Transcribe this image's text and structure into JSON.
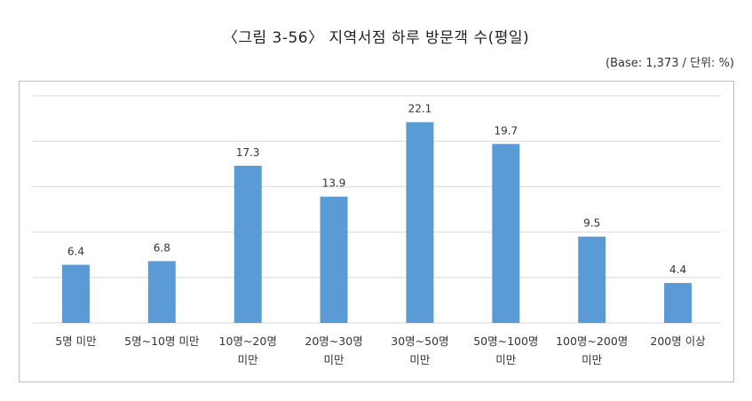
{
  "title": "〈그림 3-56〉 지역서점 하루 방문객 수(평일)",
  "base_note": "(Base: 1,373 / 단위: %)",
  "chart_data": {
    "type": "bar",
    "categories": [
      [
        "5명 미만"
      ],
      [
        "5명~10명 미만"
      ],
      [
        "10명~20명",
        "미만"
      ],
      [
        "20명~30명",
        "미만"
      ],
      [
        "30명~50명",
        "미만"
      ],
      [
        "50명~100명",
        "미만"
      ],
      [
        "100명~200명",
        "미만"
      ],
      [
        "200명 이상"
      ]
    ],
    "values": [
      6.4,
      6.8,
      17.3,
      13.9,
      22.1,
      19.7,
      9.5,
      4.4
    ],
    "value_labels": [
      "6.4",
      "6.8",
      "17.3",
      "13.9",
      "22.1",
      "19.7",
      "9.5",
      "4.4"
    ],
    "ylim": [
      0,
      25
    ],
    "grid": true,
    "bar_color": "#5b9bd5",
    "grid_color": "#d9d9d9"
  }
}
